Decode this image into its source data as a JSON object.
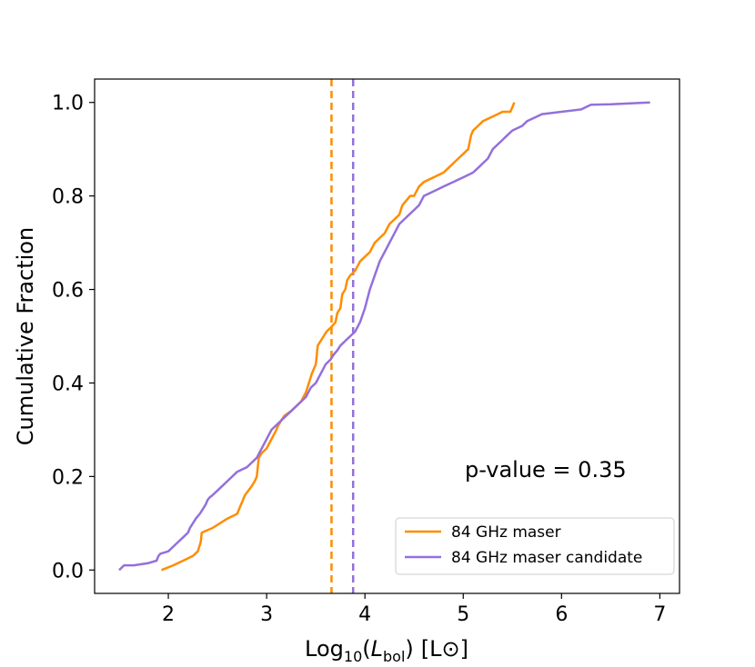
{
  "chart_data": {
    "type": "line",
    "title": "",
    "xlabel_prefix": "Log",
    "xlabel_sub": "10",
    "xlabel_open": "(",
    "xlabel_var": "L",
    "xlabel_var_sub": "bol",
    "xlabel_close": ")",
    "xlabel_unit": "[L⊙]",
    "ylabel": "Cumulative Fraction",
    "xlim": [
      1.25,
      7.2
    ],
    "ylim": [
      -0.05,
      1.05
    ],
    "xticks": [
      2,
      3,
      4,
      5,
      6,
      7
    ],
    "yticks": [
      0.0,
      0.2,
      0.4,
      0.6,
      0.8,
      1.0
    ],
    "xtick_labels": [
      "2",
      "3",
      "4",
      "5",
      "6",
      "7"
    ],
    "ytick_labels": [
      "0.0",
      "0.2",
      "0.4",
      "0.6",
      "0.8",
      "1.0"
    ],
    "annotation": "p-value = 0.35",
    "legend_position": "lower-right",
    "series": [
      {
        "name": "84 GHz maser",
        "color": "#ff8c00",
        "x": [
          1.93,
          2.05,
          2.15,
          2.25,
          2.3,
          2.33,
          2.34,
          2.45,
          2.6,
          2.7,
          2.78,
          2.85,
          2.88,
          2.9,
          2.92,
          2.95,
          3.0,
          3.05,
          3.1,
          3.12,
          3.15,
          3.18,
          3.25,
          3.3,
          3.35,
          3.4,
          3.43,
          3.46,
          3.5,
          3.52,
          3.55,
          3.58,
          3.61,
          3.66,
          3.7,
          3.72,
          3.75,
          3.77,
          3.8,
          3.82,
          3.85,
          3.9,
          3.95,
          4.0,
          4.05,
          4.1,
          4.15,
          4.2,
          4.25,
          4.3,
          4.35,
          4.38,
          4.42,
          4.46,
          4.5,
          4.55,
          4.6,
          4.7,
          4.8,
          4.85,
          4.9,
          4.95,
          5.0,
          5.05,
          5.08,
          5.1,
          5.15,
          5.2,
          5.3,
          5.4,
          5.48,
          5.5,
          5.52
        ],
        "y": [
          0.0,
          0.01,
          0.02,
          0.03,
          0.04,
          0.06,
          0.08,
          0.09,
          0.11,
          0.12,
          0.16,
          0.18,
          0.19,
          0.2,
          0.24,
          0.25,
          0.26,
          0.28,
          0.3,
          0.31,
          0.32,
          0.33,
          0.34,
          0.35,
          0.36,
          0.38,
          0.4,
          0.42,
          0.44,
          0.48,
          0.49,
          0.5,
          0.51,
          0.52,
          0.53,
          0.55,
          0.56,
          0.59,
          0.6,
          0.62,
          0.63,
          0.64,
          0.66,
          0.67,
          0.68,
          0.7,
          0.71,
          0.72,
          0.74,
          0.75,
          0.76,
          0.78,
          0.79,
          0.8,
          0.8,
          0.82,
          0.83,
          0.84,
          0.85,
          0.86,
          0.87,
          0.88,
          0.89,
          0.9,
          0.93,
          0.94,
          0.95,
          0.96,
          0.97,
          0.98,
          0.98,
          0.99,
          1.0
        ]
      },
      {
        "name": "84 GHz maser candidate",
        "color": "#9370db",
        "x": [
          1.5,
          1.55,
          1.65,
          1.8,
          1.88,
          1.9,
          1.92,
          2.0,
          2.05,
          2.1,
          2.15,
          2.2,
          2.22,
          2.25,
          2.28,
          2.32,
          2.35,
          2.38,
          2.4,
          2.42,
          2.45,
          2.5,
          2.55,
          2.6,
          2.65,
          2.7,
          2.75,
          2.8,
          2.85,
          2.9,
          2.95,
          3.0,
          3.05,
          3.1,
          3.15,
          3.2,
          3.25,
          3.3,
          3.35,
          3.4,
          3.45,
          3.5,
          3.55,
          3.6,
          3.65,
          3.68,
          3.72,
          3.75,
          3.8,
          3.85,
          3.9,
          3.95,
          4.0,
          4.05,
          4.1,
          4.15,
          4.2,
          4.25,
          4.3,
          4.35,
          4.4,
          4.45,
          4.5,
          4.55,
          4.6,
          4.7,
          4.8,
          4.9,
          5.0,
          5.1,
          5.15,
          5.2,
          5.25,
          5.3,
          5.35,
          5.4,
          5.45,
          5.5,
          5.6,
          5.65,
          5.7,
          5.75,
          5.8,
          6.0,
          6.2,
          6.3,
          6.5,
          6.7,
          6.9
        ],
        "y": [
          0.0,
          0.01,
          0.01,
          0.015,
          0.02,
          0.03,
          0.035,
          0.04,
          0.05,
          0.06,
          0.07,
          0.08,
          0.09,
          0.1,
          0.11,
          0.12,
          0.13,
          0.14,
          0.15,
          0.155,
          0.16,
          0.17,
          0.18,
          0.19,
          0.2,
          0.21,
          0.215,
          0.22,
          0.23,
          0.24,
          0.26,
          0.28,
          0.3,
          0.31,
          0.32,
          0.33,
          0.34,
          0.35,
          0.36,
          0.37,
          0.39,
          0.4,
          0.42,
          0.44,
          0.45,
          0.46,
          0.47,
          0.48,
          0.49,
          0.5,
          0.51,
          0.53,
          0.56,
          0.6,
          0.63,
          0.66,
          0.68,
          0.7,
          0.72,
          0.74,
          0.75,
          0.76,
          0.77,
          0.78,
          0.8,
          0.81,
          0.82,
          0.83,
          0.84,
          0.85,
          0.86,
          0.87,
          0.88,
          0.9,
          0.91,
          0.92,
          0.93,
          0.94,
          0.95,
          0.96,
          0.965,
          0.97,
          0.975,
          0.98,
          0.985,
          0.995,
          0.996,
          0.998,
          1.0
        ]
      }
    ],
    "vlines": [
      {
        "x": 3.66,
        "color": "#ff8c00",
        "style": "dashed"
      },
      {
        "x": 3.88,
        "color": "#9370db",
        "style": "dashed"
      }
    ]
  }
}
